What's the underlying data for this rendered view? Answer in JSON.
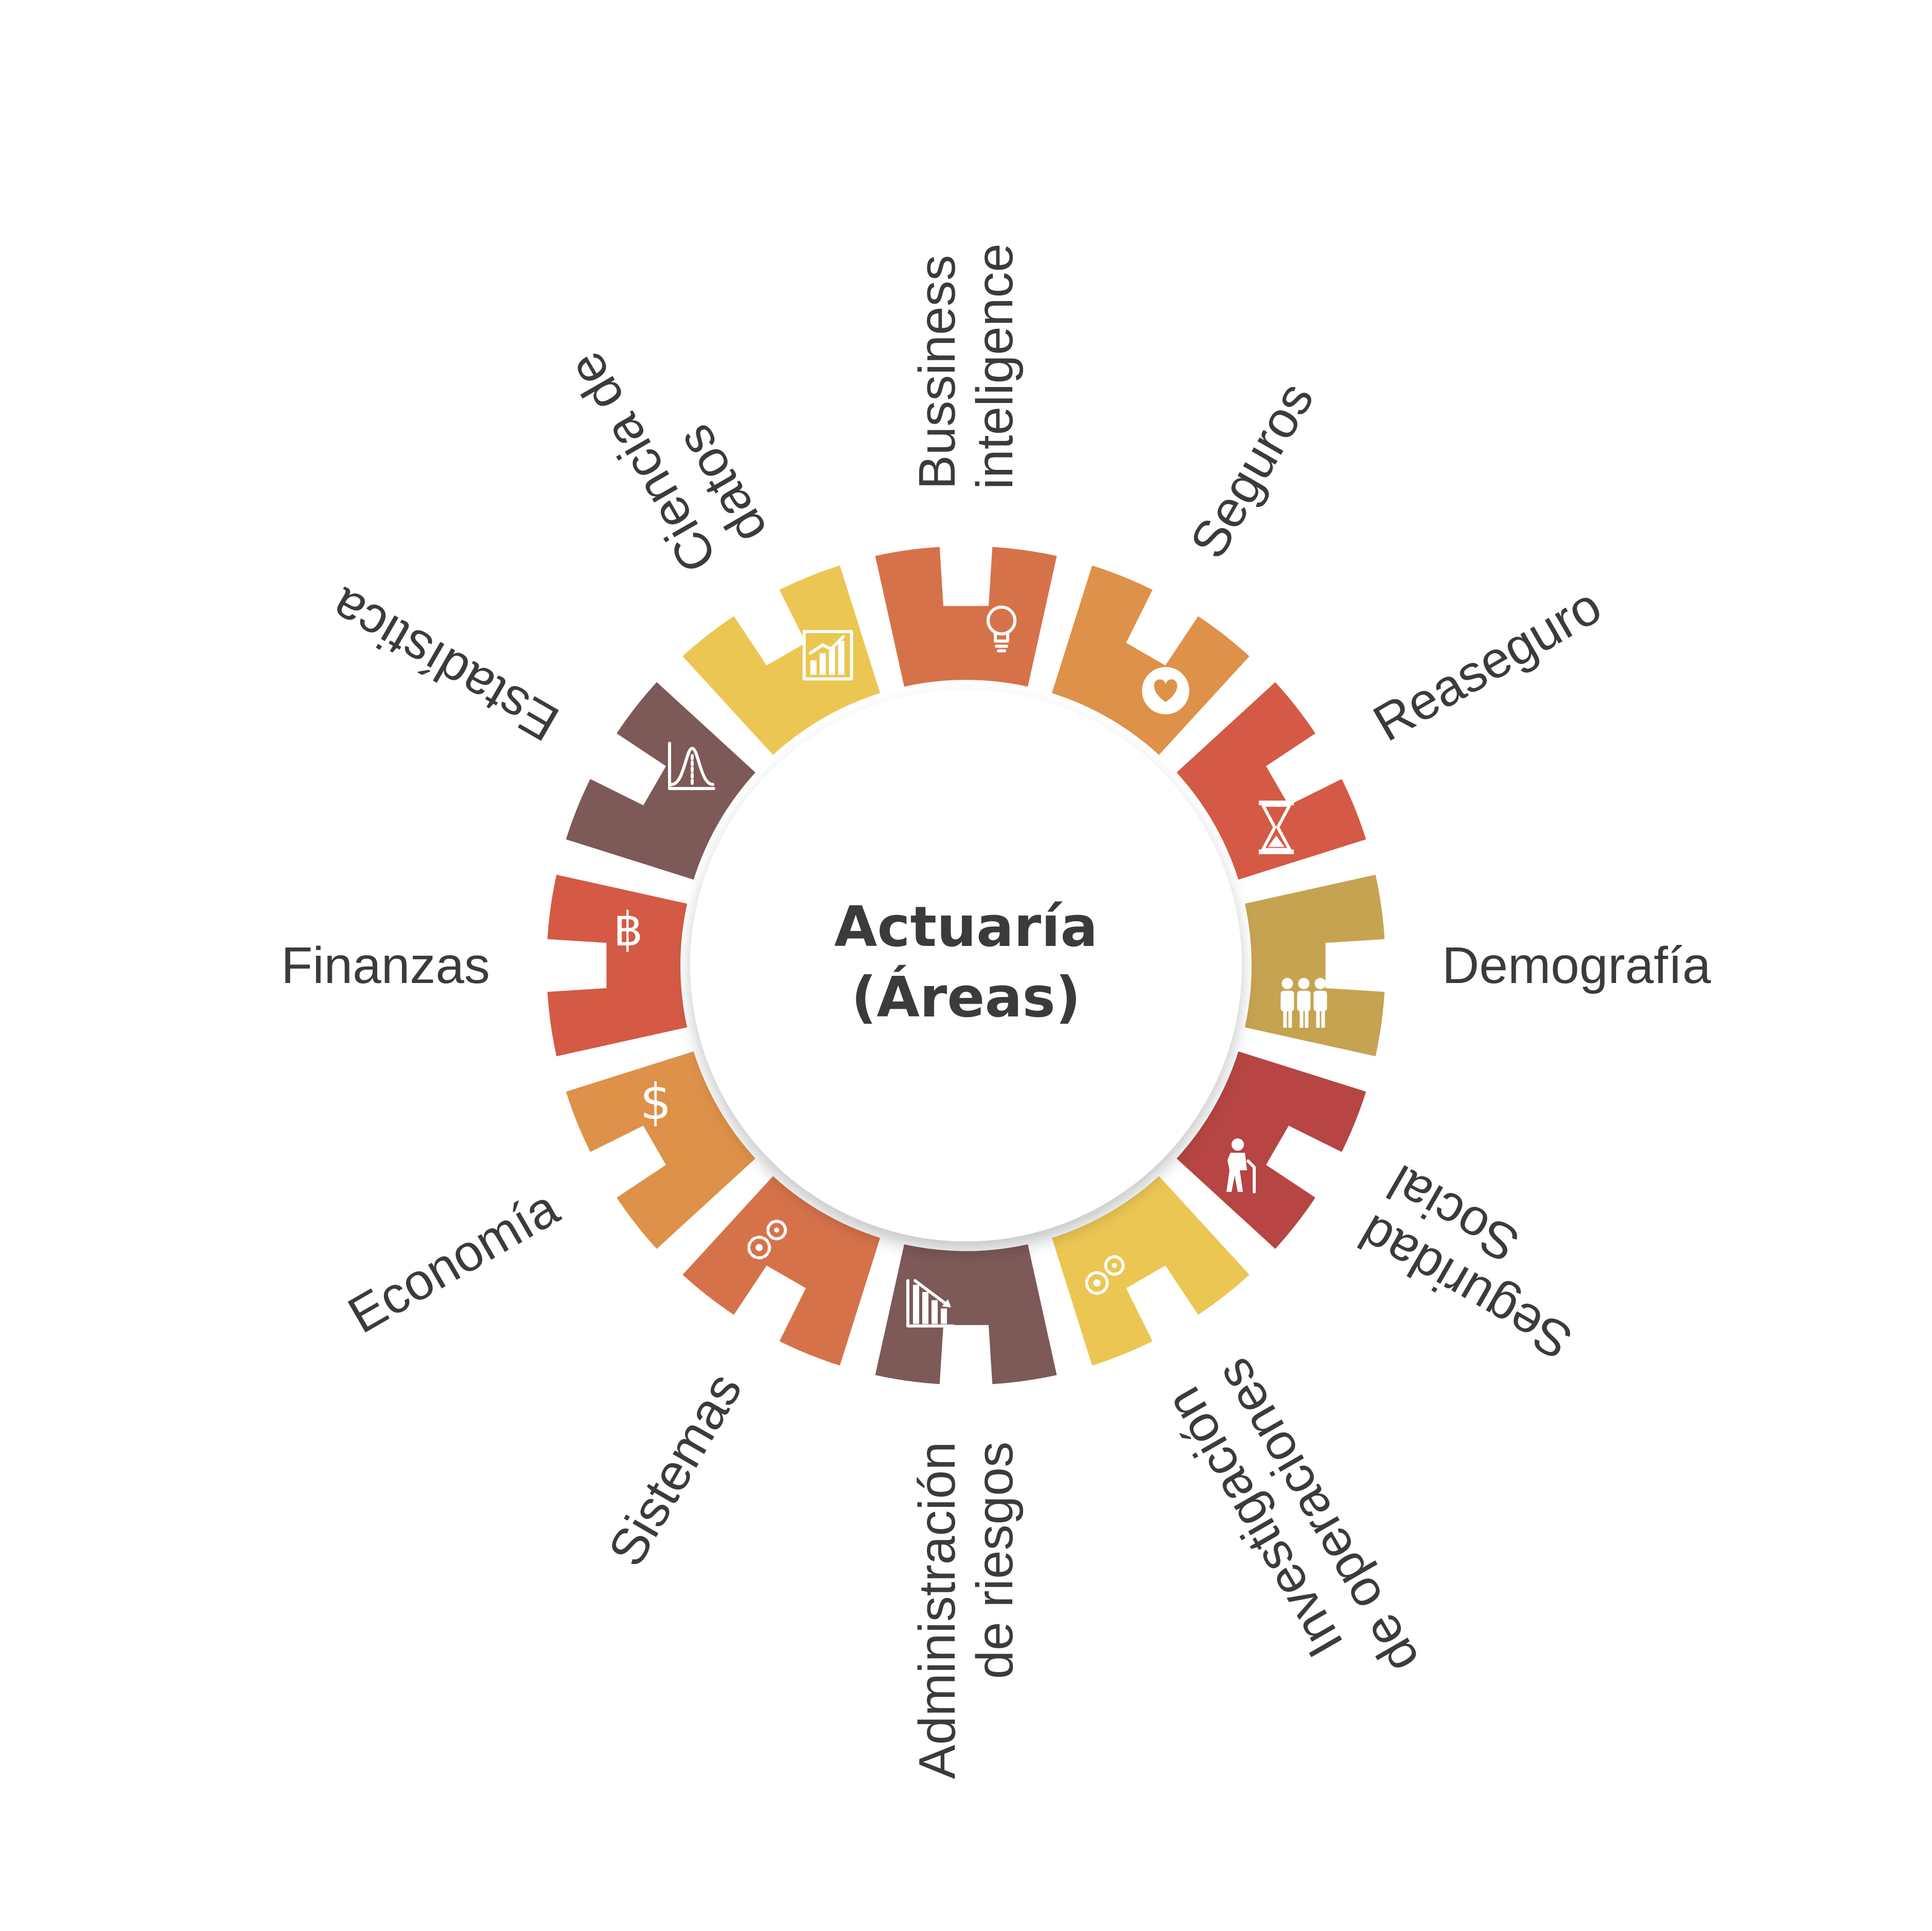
{
  "center": {
    "line1": "Actuaría",
    "line2": "(Áreas)"
  },
  "segments": [
    {
      "label_lines": [
        "Bussiness",
        "inteligence"
      ],
      "color": "#D6724A",
      "icon": "lightbulb-icon"
    },
    {
      "label_lines": [
        "Seguros"
      ],
      "color": "#DE9148",
      "icon": "heart-icon"
    },
    {
      "label_lines": [
        "Reaseguro"
      ],
      "color": "#D45A45",
      "icon": "hourglass-icon"
    },
    {
      "label_lines": [
        "Demografía"
      ],
      "color": "#C6A351",
      "icon": "people-icon"
    },
    {
      "label_lines": [
        "Seguridad",
        "Social"
      ],
      "color": "#B64543",
      "icon": "elderly-person-icon"
    },
    {
      "label_lines": [
        "Investigación",
        "de operaciones"
      ],
      "color": "#ECC653",
      "icon": "gears-icon"
    },
    {
      "label_lines": [
        "Administración",
        "de riesgos"
      ],
      "color": "#7D5957",
      "icon": "declining-chart-icon"
    },
    {
      "label_lines": [
        "Sistemas"
      ],
      "color": "#D6724A",
      "icon": "gears-icon"
    },
    {
      "label_lines": [
        "Economía"
      ],
      "color": "#DE9148",
      "icon": "dollar-icon"
    },
    {
      "label_lines": [
        "Finanzas"
      ],
      "color": "#D45A45",
      "icon": "bitcoin-icon"
    },
    {
      "label_lines": [
        "Estadística"
      ],
      "color": "#7D5957",
      "icon": "bell-curve-icon"
    },
    {
      "label_lines": [
        "Ciencia de",
        "datos"
      ],
      "color": "#ECC653",
      "icon": "growth-chart-icon"
    }
  ]
}
